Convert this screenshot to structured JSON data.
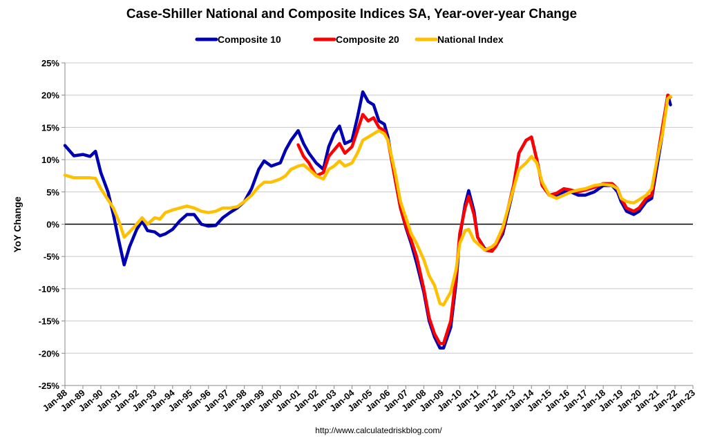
{
  "chart_data": {
    "type": "line",
    "title": "Case-Shiller National and Composite Indices SA, Year-over-year Change",
    "ylabel": "YoY Change",
    "xlabel": "",
    "ylim": [
      -25,
      25
    ],
    "xlim": [
      1988,
      2023
    ],
    "y_ticks": [
      "25%",
      "20%",
      "15%",
      "10%",
      "5%",
      "0%",
      "-5%",
      "-10%",
      "-15%",
      "-20%",
      "-25%"
    ],
    "y_tick_values": [
      25,
      20,
      15,
      10,
      5,
      0,
      -5,
      -10,
      -15,
      -20,
      -25
    ],
    "x_ticks": [
      "Jan-88",
      "Jan-89",
      "Jan-90",
      "Jan-91",
      "Jan-92",
      "Jan-93",
      "Jan-94",
      "Jan-95",
      "Jan-96",
      "Jan-97",
      "Jan-98",
      "Jan-99",
      "Jan-00",
      "Jan-01",
      "Jan-02",
      "Jan-03",
      "Jan-04",
      "Jan-05",
      "Jan-06",
      "Jan-07",
      "Jan-08",
      "Jan-09",
      "Jan-10",
      "Jan-11",
      "Jan-12",
      "Jan-13",
      "Jan-14",
      "Jan-15",
      "Jan-16",
      "Jan-17",
      "Jan-18",
      "Jan-19",
      "Jan-20",
      "Jan-21",
      "Jan-22",
      "Jan-23"
    ],
    "x_tick_values": [
      1988,
      1989,
      1990,
      1991,
      1992,
      1993,
      1994,
      1995,
      1996,
      1997,
      1998,
      1999,
      2000,
      2001,
      2002,
      2003,
      2004,
      2005,
      2006,
      2007,
      2008,
      2009,
      2010,
      2011,
      2012,
      2013,
      2014,
      2015,
      2016,
      2017,
      2018,
      2019,
      2020,
      2021,
      2022,
      2023
    ],
    "grid": "horizontal",
    "legend_position": "top",
    "zero_line": true,
    "source": "http://www.calculatedriskblog.com/",
    "series": [
      {
        "name": "Composite 10",
        "color": "#0000b3",
        "points": [
          [
            1988.0,
            12.2
          ],
          [
            1988.5,
            10.6
          ],
          [
            1989.0,
            10.8
          ],
          [
            1989.4,
            10.5
          ],
          [
            1989.7,
            11.3
          ],
          [
            1990.0,
            8.0
          ],
          [
            1990.4,
            5.0
          ],
          [
            1990.7,
            1.5
          ],
          [
            1991.0,
            -2.5
          ],
          [
            1991.3,
            -6.3
          ],
          [
            1991.6,
            -3.5
          ],
          [
            1992.0,
            -0.8
          ],
          [
            1992.3,
            0.5
          ],
          [
            1992.6,
            -1.0
          ],
          [
            1993.0,
            -1.2
          ],
          [
            1993.3,
            -1.8
          ],
          [
            1993.6,
            -1.5
          ],
          [
            1994.0,
            -0.8
          ],
          [
            1994.4,
            0.5
          ],
          [
            1994.8,
            1.5
          ],
          [
            1995.2,
            1.5
          ],
          [
            1995.6,
            0.0
          ],
          [
            1996.0,
            -0.3
          ],
          [
            1996.4,
            -0.2
          ],
          [
            1996.8,
            1.0
          ],
          [
            1997.2,
            1.8
          ],
          [
            1997.6,
            2.5
          ],
          [
            1998.0,
            3.5
          ],
          [
            1998.4,
            5.5
          ],
          [
            1998.8,
            8.5
          ],
          [
            1999.1,
            9.8
          ],
          [
            1999.5,
            9.0
          ],
          [
            2000.0,
            9.5
          ],
          [
            2000.3,
            11.5
          ],
          [
            2000.6,
            13.0
          ],
          [
            2001.0,
            14.5
          ],
          [
            2001.3,
            12.5
          ],
          [
            2001.6,
            11.0
          ],
          [
            2002.0,
            9.5
          ],
          [
            2002.4,
            8.5
          ],
          [
            2002.7,
            12.0
          ],
          [
            2003.0,
            14.0
          ],
          [
            2003.3,
            15.2
          ],
          [
            2003.6,
            12.5
          ],
          [
            2004.0,
            13.0
          ],
          [
            2004.3,
            16.5
          ],
          [
            2004.6,
            20.5
          ],
          [
            2004.9,
            19.0
          ],
          [
            2005.2,
            18.5
          ],
          [
            2005.5,
            16.0
          ],
          [
            2005.8,
            15.5
          ],
          [
            2006.0,
            13.5
          ],
          [
            2006.4,
            7.0
          ],
          [
            2006.7,
            2.5
          ],
          [
            2007.0,
            -0.5
          ],
          [
            2007.3,
            -3.0
          ],
          [
            2007.6,
            -6.0
          ],
          [
            2008.0,
            -10.5
          ],
          [
            2008.3,
            -15.0
          ],
          [
            2008.6,
            -17.5
          ],
          [
            2008.9,
            -19.2
          ],
          [
            2009.1,
            -19.2
          ],
          [
            2009.5,
            -16.0
          ],
          [
            2009.8,
            -9.0
          ],
          [
            2010.0,
            -2.0
          ],
          [
            2010.3,
            3.0
          ],
          [
            2010.5,
            5.2
          ],
          [
            2010.8,
            2.0
          ],
          [
            2011.0,
            -2.0
          ],
          [
            2011.4,
            -3.8
          ],
          [
            2011.8,
            -4.0
          ],
          [
            2012.0,
            -3.5
          ],
          [
            2012.4,
            -1.5
          ],
          [
            2012.7,
            2.0
          ],
          [
            2013.0,
            5.5
          ],
          [
            2013.3,
            11.0
          ],
          [
            2013.7,
            13.0
          ],
          [
            2014.0,
            13.5
          ],
          [
            2014.3,
            10.0
          ],
          [
            2014.6,
            6.0
          ],
          [
            2015.0,
            4.5
          ],
          [
            2015.4,
            4.5
          ],
          [
            2015.8,
            5.0
          ],
          [
            2016.2,
            5.0
          ],
          [
            2016.6,
            4.5
          ],
          [
            2017.0,
            4.5
          ],
          [
            2017.5,
            5.0
          ],
          [
            2018.0,
            6.0
          ],
          [
            2018.5,
            6.0
          ],
          [
            2018.8,
            5.0
          ],
          [
            2019.0,
            3.5
          ],
          [
            2019.3,
            2.0
          ],
          [
            2019.7,
            1.5
          ],
          [
            2020.0,
            2.0
          ],
          [
            2020.4,
            3.5
          ],
          [
            2020.7,
            4.0
          ],
          [
            2021.0,
            9.0
          ],
          [
            2021.3,
            14.0
          ],
          [
            2021.6,
            20.0
          ],
          [
            2021.75,
            18.5
          ]
        ]
      },
      {
        "name": "Composite 20",
        "color": "#ff0000",
        "points": [
          [
            2001.0,
            12.3
          ],
          [
            2001.3,
            10.5
          ],
          [
            2001.6,
            9.5
          ],
          [
            2002.0,
            7.5
          ],
          [
            2002.4,
            8.0
          ],
          [
            2002.7,
            10.5
          ],
          [
            2003.0,
            11.5
          ],
          [
            2003.3,
            12.5
          ],
          [
            2003.6,
            11.0
          ],
          [
            2004.0,
            12.0
          ],
          [
            2004.3,
            14.5
          ],
          [
            2004.6,
            17.0
          ],
          [
            2004.9,
            16.0
          ],
          [
            2005.2,
            16.5
          ],
          [
            2005.5,
            15.0
          ],
          [
            2005.8,
            14.5
          ],
          [
            2006.0,
            13.0
          ],
          [
            2006.4,
            7.0
          ],
          [
            2006.7,
            2.5
          ],
          [
            2007.0,
            -0.3
          ],
          [
            2007.3,
            -2.5
          ],
          [
            2007.6,
            -5.0
          ],
          [
            2008.0,
            -10.0
          ],
          [
            2008.3,
            -14.5
          ],
          [
            2008.6,
            -17.0
          ],
          [
            2008.9,
            -18.5
          ],
          [
            2009.1,
            -18.5
          ],
          [
            2009.5,
            -15.0
          ],
          [
            2009.8,
            -8.0
          ],
          [
            2010.0,
            -1.5
          ],
          [
            2010.3,
            2.5
          ],
          [
            2010.5,
            4.3
          ],
          [
            2010.8,
            1.5
          ],
          [
            2011.0,
            -2.0
          ],
          [
            2011.4,
            -4.0
          ],
          [
            2011.8,
            -4.2
          ],
          [
            2012.0,
            -3.5
          ],
          [
            2012.4,
            -1.0
          ],
          [
            2012.7,
            2.5
          ],
          [
            2013.0,
            6.0
          ],
          [
            2013.3,
            11.0
          ],
          [
            2013.7,
            13.0
          ],
          [
            2014.0,
            13.5
          ],
          [
            2014.3,
            10.0
          ],
          [
            2014.6,
            6.0
          ],
          [
            2015.0,
            4.5
          ],
          [
            2015.4,
            4.8
          ],
          [
            2015.8,
            5.5
          ],
          [
            2016.2,
            5.3
          ],
          [
            2016.6,
            5.0
          ],
          [
            2017.0,
            5.3
          ],
          [
            2017.5,
            5.7
          ],
          [
            2018.0,
            6.3
          ],
          [
            2018.5,
            6.3
          ],
          [
            2018.8,
            5.5
          ],
          [
            2019.0,
            4.0
          ],
          [
            2019.3,
            2.5
          ],
          [
            2019.7,
            2.0
          ],
          [
            2020.0,
            2.5
          ],
          [
            2020.4,
            4.0
          ],
          [
            2020.7,
            4.5
          ],
          [
            2021.0,
            10.0
          ],
          [
            2021.3,
            15.0
          ],
          [
            2021.6,
            20.0
          ],
          [
            2021.75,
            19.7
          ]
        ]
      },
      {
        "name": "National Index",
        "color": "#ffc000",
        "points": [
          [
            1988.0,
            7.6
          ],
          [
            1988.5,
            7.2
          ],
          [
            1989.0,
            7.2
          ],
          [
            1989.4,
            7.2
          ],
          [
            1989.7,
            7.1
          ],
          [
            1990.0,
            5.5
          ],
          [
            1990.4,
            3.8
          ],
          [
            1990.7,
            2.5
          ],
          [
            1991.0,
            0.5
          ],
          [
            1991.3,
            -2.0
          ],
          [
            1991.6,
            -1.2
          ],
          [
            1992.0,
            0.0
          ],
          [
            1992.3,
            1.0
          ],
          [
            1992.6,
            0.0
          ],
          [
            1993.0,
            1.0
          ],
          [
            1993.3,
            0.8
          ],
          [
            1993.6,
            1.8
          ],
          [
            1994.0,
            2.2
          ],
          [
            1994.4,
            2.5
          ],
          [
            1994.8,
            2.8
          ],
          [
            1995.2,
            2.5
          ],
          [
            1995.6,
            2.0
          ],
          [
            1996.0,
            1.8
          ],
          [
            1996.4,
            2.0
          ],
          [
            1996.8,
            2.5
          ],
          [
            1997.2,
            2.5
          ],
          [
            1997.6,
            2.7
          ],
          [
            1998.0,
            3.5
          ],
          [
            1998.4,
            4.5
          ],
          [
            1998.8,
            5.8
          ],
          [
            1999.1,
            6.5
          ],
          [
            1999.5,
            6.5
          ],
          [
            2000.0,
            7.0
          ],
          [
            2000.3,
            7.5
          ],
          [
            2000.6,
            8.5
          ],
          [
            2001.0,
            9.0
          ],
          [
            2001.3,
            9.2
          ],
          [
            2001.6,
            8.5
          ],
          [
            2002.0,
            7.5
          ],
          [
            2002.4,
            7.0
          ],
          [
            2002.7,
            8.5
          ],
          [
            2003.0,
            9.0
          ],
          [
            2003.3,
            9.8
          ],
          [
            2003.6,
            9.0
          ],
          [
            2004.0,
            9.5
          ],
          [
            2004.3,
            11.0
          ],
          [
            2004.6,
            13.0
          ],
          [
            2004.9,
            13.5
          ],
          [
            2005.2,
            14.0
          ],
          [
            2005.5,
            14.5
          ],
          [
            2005.8,
            14.0
          ],
          [
            2006.0,
            13.0
          ],
          [
            2006.4,
            8.0
          ],
          [
            2006.7,
            3.5
          ],
          [
            2007.0,
            1.0
          ],
          [
            2007.3,
            -1.5
          ],
          [
            2007.6,
            -3.0
          ],
          [
            2008.0,
            -5.5
          ],
          [
            2008.3,
            -8.0
          ],
          [
            2008.6,
            -9.5
          ],
          [
            2008.9,
            -12.3
          ],
          [
            2009.1,
            -12.5
          ],
          [
            2009.5,
            -10.5
          ],
          [
            2009.8,
            -7.0
          ],
          [
            2010.0,
            -3.0
          ],
          [
            2010.3,
            -1.0
          ],
          [
            2010.5,
            -0.8
          ],
          [
            2010.8,
            -2.5
          ],
          [
            2011.0,
            -3.0
          ],
          [
            2011.4,
            -4.0
          ],
          [
            2011.8,
            -3.5
          ],
          [
            2012.0,
            -3.0
          ],
          [
            2012.4,
            -0.5
          ],
          [
            2012.7,
            2.5
          ],
          [
            2013.0,
            5.5
          ],
          [
            2013.3,
            8.5
          ],
          [
            2013.7,
            9.5
          ],
          [
            2014.0,
            10.5
          ],
          [
            2014.3,
            9.5
          ],
          [
            2014.6,
            6.5
          ],
          [
            2015.0,
            4.5
          ],
          [
            2015.4,
            4.0
          ],
          [
            2015.8,
            4.5
          ],
          [
            2016.2,
            5.0
          ],
          [
            2016.6,
            5.3
          ],
          [
            2017.0,
            5.5
          ],
          [
            2017.5,
            6.0
          ],
          [
            2018.0,
            6.2
          ],
          [
            2018.5,
            6.0
          ],
          [
            2018.8,
            5.5
          ],
          [
            2019.0,
            4.0
          ],
          [
            2019.3,
            3.5
          ],
          [
            2019.7,
            3.3
          ],
          [
            2020.0,
            3.8
          ],
          [
            2020.4,
            4.5
          ],
          [
            2020.7,
            5.5
          ],
          [
            2021.0,
            10.0
          ],
          [
            2021.3,
            14.0
          ],
          [
            2021.6,
            19.5
          ],
          [
            2021.75,
            19.8
          ]
        ]
      }
    ]
  }
}
